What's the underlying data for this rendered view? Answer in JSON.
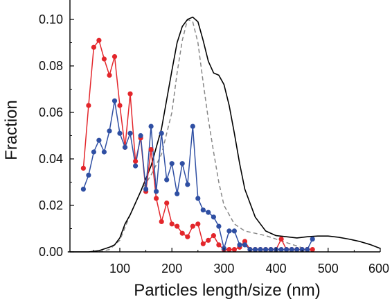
{
  "chart_data": {
    "type": "line",
    "xlabel": "Particles length/size (nm)",
    "ylabel": "Fraction",
    "xlim": [
      0,
      600
    ],
    "ylim": [
      0,
      0.105
    ],
    "x_ticks": [
      100,
      200,
      300,
      400,
      500,
      600
    ],
    "y_ticks": [
      0.0,
      0.02,
      0.04,
      0.06,
      0.08,
      0.1
    ],
    "x_tick_labels": [
      "100",
      "200",
      "300",
      "400",
      "500",
      "600"
    ],
    "y_tick_labels": [
      "0.00",
      "0.02",
      "0.04",
      "0.06",
      "0.08",
      "0.10"
    ],
    "grid": false,
    "legend": "none",
    "series": [
      {
        "style": "line-markers",
        "color": "#e3262b",
        "x": [
          30,
          40,
          50,
          60,
          70,
          80,
          90,
          100,
          110,
          120,
          130,
          140,
          150,
          160,
          170,
          180,
          190,
          200,
          210,
          220,
          230,
          240,
          250,
          260,
          270,
          280,
          290,
          300,
          310,
          320,
          330,
          340,
          350,
          360,
          370,
          380,
          390,
          400,
          410,
          420,
          430,
          440,
          450,
          460,
          470
        ],
        "y": [
          0.036,
          0.063,
          0.088,
          0.091,
          0.083,
          0.076,
          0.084,
          0.063,
          0.045,
          0.068,
          0.039,
          0.049,
          0.026,
          0.044,
          0.023,
          0.013,
          0.021,
          0.012,
          0.011,
          0.008,
          0.0065,
          0.011,
          0.012,
          0.0035,
          0.005,
          0.007,
          0.003,
          0.001,
          0.001,
          0.001,
          0.002,
          0.0045,
          0.001,
          0.001,
          0.001,
          0.001,
          0.001,
          0.001,
          0.0055,
          0.001,
          0.001,
          0.001,
          0.001,
          0.001,
          0.001
        ]
      },
      {
        "style": "line-markers",
        "color": "#2f4fa3",
        "x": [
          30,
          40,
          50,
          60,
          70,
          80,
          90,
          100,
          110,
          120,
          130,
          140,
          150,
          160,
          170,
          180,
          190,
          200,
          210,
          220,
          230,
          240,
          250,
          260,
          270,
          280,
          290,
          300,
          310,
          320,
          330,
          340,
          350,
          360,
          370,
          380,
          390,
          400,
          410,
          420,
          430,
          440,
          450,
          460,
          470
        ],
        "y": [
          0.027,
          0.033,
          0.043,
          0.048,
          0.043,
          0.052,
          0.065,
          0.051,
          0.045,
          0.051,
          0.037,
          0.05,
          0.027,
          0.054,
          0.026,
          0.051,
          0.031,
          0.038,
          0.025,
          0.038,
          0.029,
          0.054,
          0.023,
          0.018,
          0.017,
          0.015,
          0.011,
          0.0015,
          0.009,
          0.009,
          0.003,
          0.003,
          0.001,
          0.001,
          0.001,
          0.001,
          0.001,
          0.001,
          0.001,
          0.001,
          0.001,
          0.001,
          0.001,
          0.001,
          0.0055
        ]
      },
      {
        "style": "solid",
        "color": "#000000",
        "x": [
          0,
          40,
          60,
          80,
          90,
          100,
          110,
          120,
          140,
          160,
          180,
          200,
          210,
          220,
          230,
          240,
          250,
          260,
          270,
          280,
          290,
          300,
          310,
          320,
          330,
          340,
          360,
          380,
          400,
          420,
          440,
          460,
          480,
          500,
          520,
          540,
          560,
          580,
          600
        ],
        "y": [
          0,
          0,
          0.0005,
          0.002,
          0.003,
          0.006,
          0.012,
          0.016,
          0.026,
          0.037,
          0.053,
          0.078,
          0.09,
          0.097,
          0.1,
          0.101,
          0.099,
          0.091,
          0.082,
          0.077,
          0.076,
          0.072,
          0.063,
          0.051,
          0.038,
          0.027,
          0.015,
          0.009,
          0.007,
          0.0065,
          0.006,
          0.0065,
          0.0068,
          0.0068,
          0.0063,
          0.0055,
          0.0045,
          0.0032,
          0.0015
        ]
      },
      {
        "style": "dashed",
        "color": "#888888",
        "x": [
          60,
          80,
          100,
          120,
          140,
          160,
          180,
          200,
          210,
          220,
          230,
          240,
          250,
          260,
          270,
          280,
          290,
          300,
          320,
          340,
          360,
          380,
          400,
          420,
          440,
          460
        ],
        "y": [
          0,
          0.001,
          0.005,
          0.016,
          0.026,
          0.033,
          0.042,
          0.06,
          0.077,
          0.091,
          0.1,
          0.099,
          0.09,
          0.073,
          0.057,
          0.043,
          0.03,
          0.02,
          0.012,
          0.009,
          0.008,
          0.007,
          0.0055,
          0.004,
          0.0025,
          0.001
        ]
      }
    ]
  }
}
